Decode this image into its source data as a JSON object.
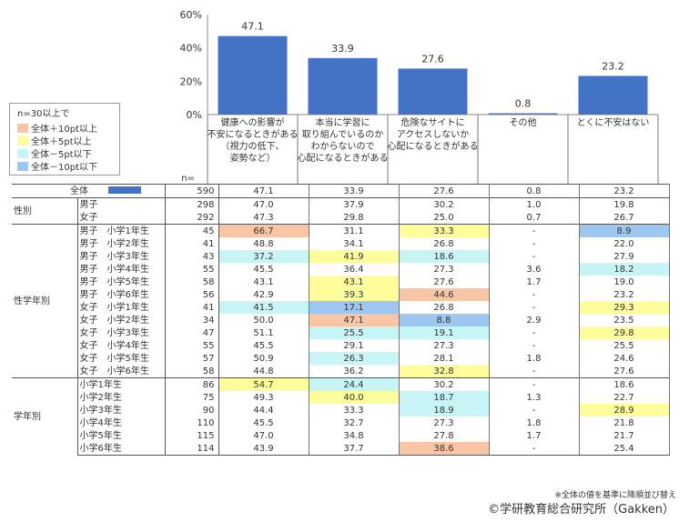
{
  "chart_data": {
    "type": "bar",
    "y_ticks": [
      "60%",
      "40%",
      "20%",
      "0%"
    ],
    "ylim": [
      0,
      60
    ],
    "bar_color": "#4472c4",
    "categories": [
      "健康への影響が\n不安になるときがある\n（視力の低下、\n姿勢など）",
      "本当に学習に\n取り組んでいるのか\nわからないので\n心配になるときがある",
      "危険なサイトに\nアクセスしないか\n心配になるときがある",
      "その他",
      "とくに不安はない"
    ],
    "values": [
      47.1,
      33.9,
      27.6,
      0.8,
      23.2
    ],
    "value_labels": [
      "47.1",
      "33.9",
      "27.6",
      "0.8",
      "23.2"
    ]
  },
  "legend": {
    "title": "n=30以上で",
    "items": [
      {
        "label": "全体＋10pt以上",
        "color": "#f8c6a4"
      },
      {
        "label": "全体＋5pt以上",
        "color": "#fdfd9c"
      },
      {
        "label": "全体－5pt以下",
        "color": "#c7f4f4"
      },
      {
        "label": "全体－10pt以下",
        "color": "#9dc6f1"
      }
    ]
  },
  "n_header": "n=",
  "table": {
    "total": {
      "label": "全体",
      "n": "590",
      "values": [
        "47.1",
        "33.9",
        "27.6",
        "0.8",
        "23.2"
      ]
    },
    "groups": [
      {
        "label": "性別",
        "rows": [
          {
            "label": "男子",
            "n": "298",
            "values": [
              "47.0",
              "37.9",
              "30.2",
              "1.0",
              "19.8"
            ],
            "hl": [
              "",
              "",
              "",
              "",
              ""
            ]
          },
          {
            "label": "女子",
            "n": "292",
            "values": [
              "47.3",
              "29.8",
              "25.0",
              "0.7",
              "26.7"
            ],
            "hl": [
              "",
              "",
              "",
              "",
              ""
            ]
          }
        ]
      },
      {
        "label": "性学年別",
        "rows": [
          {
            "label": "男子　小学1年生",
            "n": "45",
            "values": [
              "66.7",
              "31.1",
              "33.3",
              "-",
              "8.9"
            ],
            "hl": [
              "r10",
              "",
              "r5",
              "",
              "b10"
            ]
          },
          {
            "label": "男子　小学2年生",
            "n": "41",
            "values": [
              "48.8",
              "34.1",
              "26.8",
              "-",
              "22.0"
            ],
            "hl": [
              "",
              "",
              "",
              "",
              ""
            ]
          },
          {
            "label": "男子　小学3年生",
            "n": "43",
            "values": [
              "37.2",
              "41.9",
              "18.6",
              "-",
              "27.9"
            ],
            "hl": [
              "b5",
              "r5",
              "b5",
              "",
              ""
            ]
          },
          {
            "label": "男子　小学4年生",
            "n": "55",
            "values": [
              "45.5",
              "36.4",
              "27.3",
              "3.6",
              "18.2"
            ],
            "hl": [
              "",
              "",
              "",
              "",
              "b5"
            ]
          },
          {
            "label": "男子　小学5年生",
            "n": "58",
            "values": [
              "43.1",
              "43.1",
              "27.6",
              "1.7",
              "19.0"
            ],
            "hl": [
              "",
              "r5",
              "",
              "",
              ""
            ]
          },
          {
            "label": "男子　小学6年生",
            "n": "56",
            "values": [
              "42.9",
              "39.3",
              "44.6",
              "-",
              "23.2"
            ],
            "hl": [
              "",
              "r5",
              "r10",
              "",
              ""
            ]
          },
          {
            "label": "女子　小学1年生",
            "n": "41",
            "values": [
              "41.5",
              "17.1",
              "26.8",
              "-",
              "29.3"
            ],
            "hl": [
              "b5",
              "b10",
              "",
              "",
              "r5"
            ]
          },
          {
            "label": "女子　小学2年生",
            "n": "34",
            "values": [
              "50.0",
              "47.1",
              "8.8",
              "2.9",
              "23.5"
            ],
            "hl": [
              "",
              "r10",
              "b10",
              "",
              ""
            ]
          },
          {
            "label": "女子　小学3年生",
            "n": "47",
            "values": [
              "51.1",
              "25.5",
              "19.1",
              "-",
              "29.8"
            ],
            "hl": [
              "",
              "b5",
              "b5",
              "",
              "r5"
            ]
          },
          {
            "label": "女子　小学4年生",
            "n": "55",
            "values": [
              "45.5",
              "29.1",
              "27.3",
              "-",
              "25.5"
            ],
            "hl": [
              "",
              "",
              "",
              "",
              ""
            ]
          },
          {
            "label": "女子　小学5年生",
            "n": "57",
            "values": [
              "50.9",
              "26.3",
              "28.1",
              "1.8",
              "24.6"
            ],
            "hl": [
              "",
              "b5",
              "",
              "",
              ""
            ]
          },
          {
            "label": "女子　小学6年生",
            "n": "58",
            "values": [
              "44.8",
              "36.2",
              "32.8",
              "-",
              "27.6"
            ],
            "hl": [
              "",
              "",
              "r5",
              "",
              ""
            ]
          }
        ]
      },
      {
        "label": "学年別",
        "rows": [
          {
            "label": "小学1年生",
            "n": "86",
            "values": [
              "54.7",
              "24.4",
              "30.2",
              "-",
              "18.6"
            ],
            "hl": [
              "r5",
              "b5",
              "",
              "",
              ""
            ]
          },
          {
            "label": "小学2年生",
            "n": "75",
            "values": [
              "49.3",
              "40.0",
              "18.7",
              "1.3",
              "22.7"
            ],
            "hl": [
              "",
              "r5",
              "b5",
              "",
              ""
            ]
          },
          {
            "label": "小学3年生",
            "n": "90",
            "values": [
              "44.4",
              "33.3",
              "18.9",
              "-",
              "28.9"
            ],
            "hl": [
              "",
              "",
              "b5",
              "",
              "r5"
            ]
          },
          {
            "label": "小学4年生",
            "n": "110",
            "values": [
              "45.5",
              "32.7",
              "27.3",
              "1.8",
              "21.8"
            ],
            "hl": [
              "",
              "",
              "",
              "",
              ""
            ]
          },
          {
            "label": "小学5年生",
            "n": "115",
            "values": [
              "47.0",
              "34.8",
              "27.8",
              "1.7",
              "21.7"
            ],
            "hl": [
              "",
              "",
              "",
              "",
              ""
            ]
          },
          {
            "label": "小学6年生",
            "n": "114",
            "values": [
              "43.9",
              "37.7",
              "38.6",
              "-",
              "25.4"
            ],
            "hl": [
              "",
              "",
              "r10",
              "",
              ""
            ]
          }
        ]
      }
    ]
  },
  "note": "※全体の値を基準に降順並び替え",
  "copyright": "©学研教育総合研究所（Gakken）"
}
